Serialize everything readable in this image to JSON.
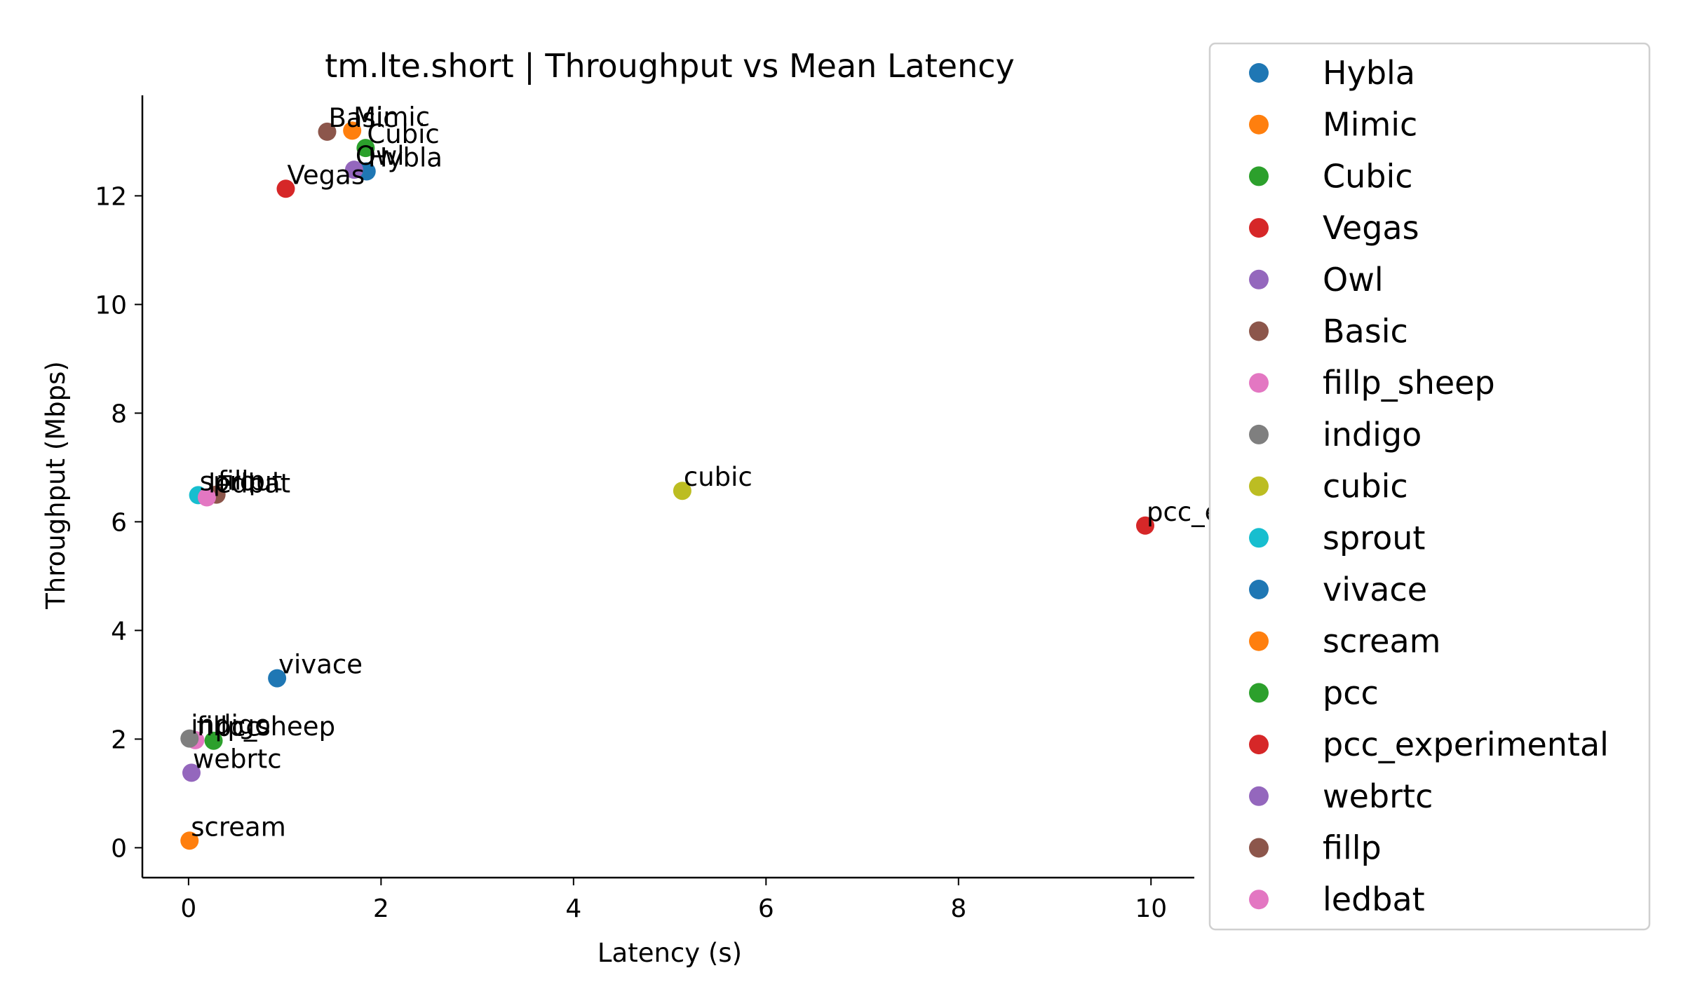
{
  "chart_data": {
    "type": "scatter",
    "title": "tm.lte.short | Throughput vs Mean Latency",
    "xlabel": "Latency (s)",
    "ylabel": "Throughput (Mbps)",
    "xlim": [
      -0.48,
      10.45
    ],
    "ylim": [
      -0.55,
      13.85
    ],
    "xticks": [
      0,
      2,
      4,
      6,
      8,
      10
    ],
    "yticks": [
      0,
      2,
      4,
      6,
      8,
      10,
      12
    ],
    "grid": false,
    "legend_position": "right, outside plot",
    "series": [
      {
        "name": "Hybla",
        "color": "#1f77b4",
        "x": 1.85,
        "y": 12.45
      },
      {
        "name": "Mimic",
        "color": "#ff7f0e",
        "x": 1.7,
        "y": 13.2
      },
      {
        "name": "Cubic",
        "color": "#2ca02c",
        "x": 1.84,
        "y": 12.88
      },
      {
        "name": "Vegas",
        "color": "#d62728",
        "x": 1.01,
        "y": 12.13
      },
      {
        "name": "Owl",
        "color": "#9467bd",
        "x": 1.72,
        "y": 12.48
      },
      {
        "name": "Basic",
        "color": "#8c564b",
        "x": 1.44,
        "y": 13.18
      },
      {
        "name": "fillp_sheep",
        "color": "#e377c2",
        "x": 0.07,
        "y": 1.98
      },
      {
        "name": "indigo",
        "color": "#7f7f7f",
        "x": 0.01,
        "y": 2.01
      },
      {
        "name": "cubic",
        "color": "#bcbd22",
        "x": 5.13,
        "y": 6.57
      },
      {
        "name": "sprout",
        "color": "#17becf",
        "x": 0.1,
        "y": 6.49
      },
      {
        "name": "vivace",
        "color": "#1f77b4",
        "x": 0.92,
        "y": 3.12
      },
      {
        "name": "scream",
        "color": "#ff7f0e",
        "x": 0.01,
        "y": 0.13
      },
      {
        "name": "pcc",
        "color": "#2ca02c",
        "x": 0.26,
        "y": 1.97
      },
      {
        "name": "pcc_experimental",
        "color": "#d62728",
        "x": 9.94,
        "y": 5.93
      },
      {
        "name": "webrtc",
        "color": "#9467bd",
        "x": 0.03,
        "y": 1.38
      },
      {
        "name": "fillp",
        "color": "#8c564b",
        "x": 0.29,
        "y": 6.5
      },
      {
        "name": "ledbat",
        "color": "#e377c2",
        "x": 0.19,
        "y": 6.45
      }
    ]
  }
}
